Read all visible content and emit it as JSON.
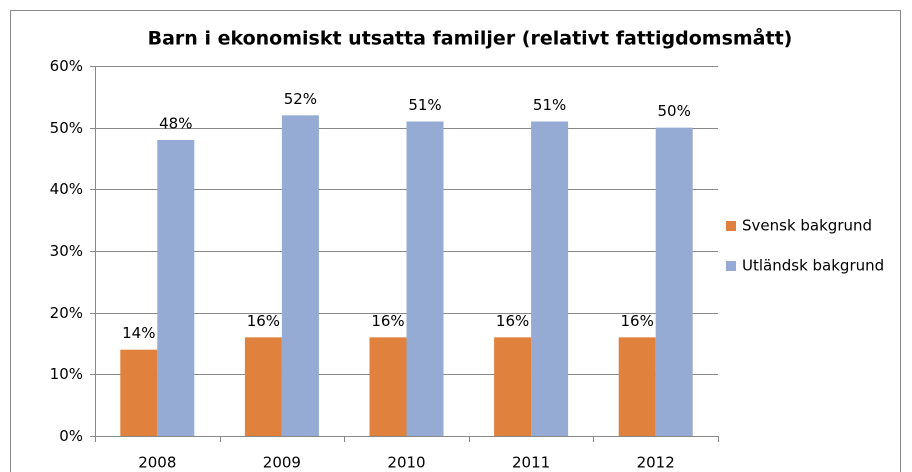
{
  "chart_data": {
    "type": "bar",
    "title": "Barn i ekonomiskt utsatta familjer (relativt fattigdomsmått)",
    "categories": [
      "2008",
      "2009",
      "2010",
      "2011",
      "2012"
    ],
    "series": [
      {
        "name": "Svensk bakgrund",
        "color": "#e0823d",
        "values": [
          14,
          16,
          16,
          16,
          16
        ],
        "value_labels": [
          "14%",
          "16%",
          "16%",
          "16%",
          "16%"
        ]
      },
      {
        "name": "Utländsk bakgrund",
        "color": "#95abd3",
        "values": [
          48,
          52,
          51,
          51,
          50
        ],
        "value_labels": [
          "48%",
          "52%",
          "51%",
          "51%",
          "50%"
        ]
      }
    ],
    "ylim": [
      0,
      60
    ],
    "yticks": [
      {
        "value": 0,
        "label": "0%"
      },
      {
        "value": 10,
        "label": "10%"
      },
      {
        "value": 20,
        "label": "20%"
      },
      {
        "value": 30,
        "label": "30%"
      },
      {
        "value": 40,
        "label": "40%"
      },
      {
        "value": 50,
        "label": "50%"
      },
      {
        "value": 60,
        "label": "60%"
      }
    ],
    "grid": true,
    "legend": "right"
  }
}
